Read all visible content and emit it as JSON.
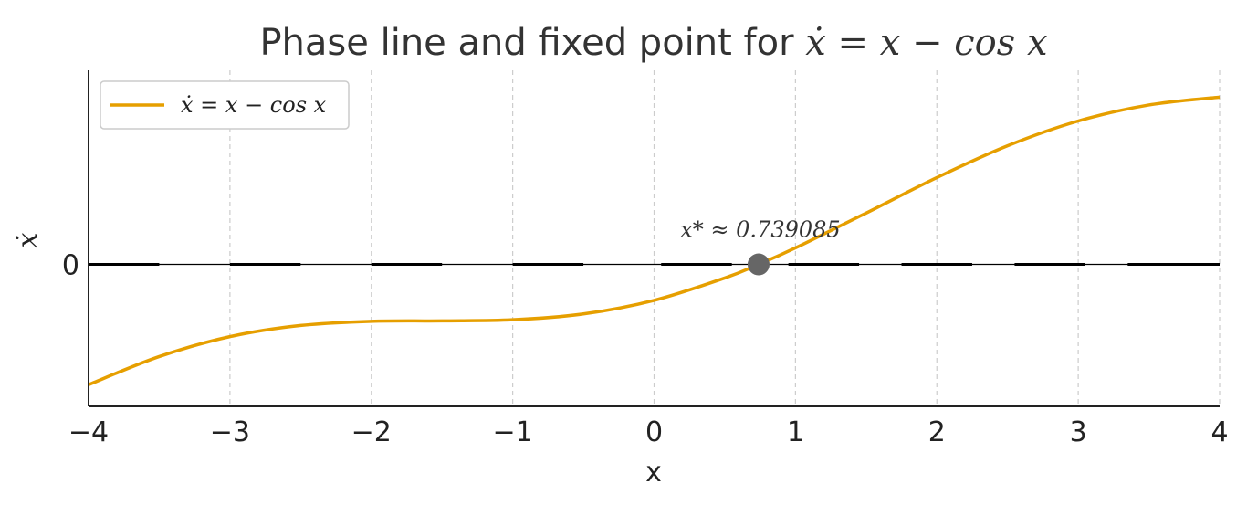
{
  "chart_data": {
    "type": "line",
    "title_prefix": "Phase line and fixed point for ",
    "title_math": "ẋ = x − cos x",
    "xlabel": "x",
    "ylabel": "ẋ",
    "xlim": [
      -4,
      4
    ],
    "ylim": [
      -3.95,
      5.4
    ],
    "x_ticks": [
      -4,
      -3,
      -2,
      -1,
      0,
      1,
      2,
      3,
      4
    ],
    "x_tick_labels": [
      "−4",
      "−3",
      "−2",
      "−1",
      "0",
      "1",
      "2",
      "3",
      "4"
    ],
    "y_ticks": [
      0
    ],
    "y_tick_labels": [
      "0"
    ],
    "grid": "vertical dashed",
    "legend_position": "top-left",
    "series": [
      {
        "name": "ẋ = x − cos x",
        "color": "#E69F00",
        "x": [
          -4,
          -3.5,
          -3,
          -2.5,
          -2,
          -1.5,
          -1,
          -0.5,
          0,
          0.5,
          0.739085,
          1,
          1.5,
          2,
          2.5,
          3,
          3.5,
          4
        ],
        "y": [
          -3.346,
          -2.564,
          -2.01,
          -1.699,
          -1.584,
          -1.571,
          -1.54,
          -1.378,
          -1.0,
          -0.378,
          0.0,
          0.46,
          1.429,
          2.416,
          3.301,
          3.99,
          4.436,
          4.654
        ]
      }
    ],
    "fixed_point": {
      "x": 0.739085,
      "y": 0,
      "color": "#666666",
      "label": "x* ≈ 0.739085"
    },
    "flow_arrows": [
      {
        "from": -3.5,
        "to": -4.0
      },
      {
        "from": -2.5,
        "to": -3.0
      },
      {
        "from": -1.5,
        "to": -2.0
      },
      {
        "from": -0.5,
        "to": -1.0
      },
      {
        "from": 0.55,
        "to": 0.05
      },
      {
        "from": 0.95,
        "to": 1.45
      },
      {
        "from": 1.75,
        "to": 2.25
      },
      {
        "from": 2.55,
        "to": 3.05
      },
      {
        "from": 3.35,
        "to": 3.85
      },
      {
        "from": 3.55,
        "to": 4.0
      }
    ]
  }
}
